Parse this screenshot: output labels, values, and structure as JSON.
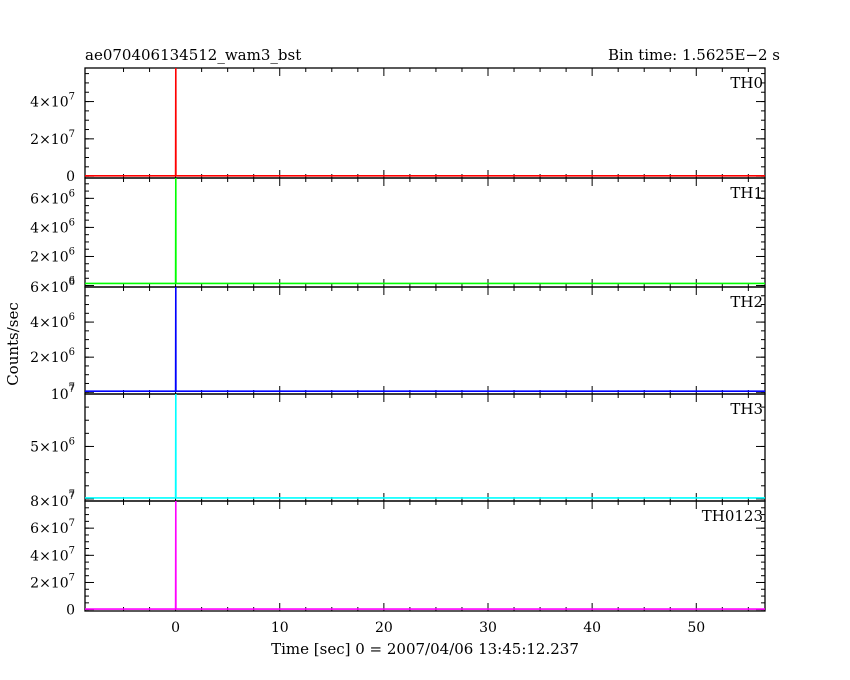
{
  "header": {
    "title": "ae070406134512_wam3_bst",
    "bin_time": "Bin time: 1.5625E−2 s"
  },
  "chart_data": {
    "type": "line",
    "xlabel": "Time [sec] 0 = 2007/04/06 13:45:12.237",
    "ylabel": "Counts/sec",
    "xlim": [
      -8.7,
      56.6
    ],
    "x_ticks": [
      0,
      10,
      20,
      30,
      40,
      50
    ],
    "x_tick_labels": [
      "0",
      "10",
      "20",
      "30",
      "40",
      "50"
    ],
    "grid": false,
    "panels": [
      {
        "name": "TH0",
        "color": "#ff0000",
        "ylim": [
          -1000000,
          58000000
        ],
        "y_ticks": [
          {
            "v": 0,
            "label": "0",
            "exp": ""
          },
          {
            "v": 20000000,
            "label": "2×10",
            "exp": "7"
          },
          {
            "v": 40000000,
            "label": "4×10",
            "exp": "7"
          }
        ],
        "x": [
          -8.7,
          0,
          0.0156,
          0.03,
          56.6
        ],
        "y": [
          200000,
          200000,
          58000000,
          200000,
          200000
        ]
      },
      {
        "name": "TH1",
        "color": "#00ff00",
        "ylim": [
          -100000,
          7400000
        ],
        "y_ticks": [
          {
            "v": 0,
            "label": "",
            "exp": "6"
          },
          {
            "v": 2000000,
            "label": "2×10",
            "exp": "6"
          },
          {
            "v": 4000000,
            "label": "4×10",
            "exp": "6"
          },
          {
            "v": 6000000,
            "label": "6×10",
            "exp": "6"
          }
        ],
        "x": [
          -8.7,
          0,
          0.0156,
          0.03,
          56.6
        ],
        "y": [
          150000,
          150000,
          7400000,
          150000,
          150000
        ]
      },
      {
        "name": "TH2",
        "color": "#0000ff",
        "ylim": [
          -100000,
          6000000
        ],
        "y_ticks": [
          {
            "v": 0,
            "label": "",
            "exp": "7"
          },
          {
            "v": 2000000,
            "label": "2×10",
            "exp": "6"
          },
          {
            "v": 4000000,
            "label": "4×10",
            "exp": "6"
          },
          {
            "v": 6000000,
            "label": "6×10",
            "exp": "6"
          }
        ],
        "x": [
          -8.7,
          0,
          0.0156,
          0.03,
          56.6
        ],
        "y": [
          60000,
          60000,
          6000000,
          60000,
          60000
        ]
      },
      {
        "name": "TH3",
        "color": "#00ffff",
        "ylim": [
          -200000,
          10000000
        ],
        "y_ticks": [
          {
            "v": 0,
            "label": "",
            "exp": "7"
          },
          {
            "v": 5000000,
            "label": "5×10",
            "exp": "6"
          },
          {
            "v": 10000000,
            "label": "10",
            "exp": "7"
          }
        ],
        "x": [
          -8.7,
          0,
          0.0156,
          0.03,
          56.6
        ],
        "y": [
          100000,
          100000,
          10000000,
          100000,
          100000
        ]
      },
      {
        "name": "TH0123",
        "color": "#ff00ff",
        "ylim": [
          -1000000,
          80000000
        ],
        "y_ticks": [
          {
            "v": 0,
            "label": "0",
            "exp": ""
          },
          {
            "v": 20000000,
            "label": "2×10",
            "exp": "7"
          },
          {
            "v": 40000000,
            "label": "4×10",
            "exp": "7"
          },
          {
            "v": 60000000,
            "label": "6×10",
            "exp": "7"
          },
          {
            "v": 80000000,
            "label": "8×10",
            "exp": "7"
          }
        ],
        "x": [
          -8.7,
          0,
          0.0156,
          0.03,
          56.6
        ],
        "y": [
          400000,
          400000,
          80000000,
          400000,
          400000
        ]
      }
    ]
  }
}
